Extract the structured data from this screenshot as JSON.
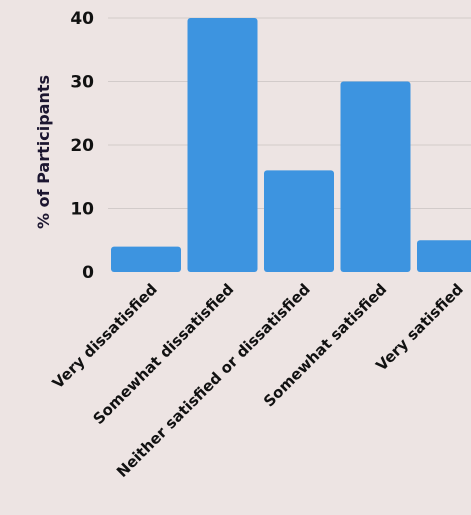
{
  "chart_data": {
    "type": "bar",
    "categories": [
      "Very dissatisfied",
      "Somewhat dissatisfied",
      "Neither satisfied or dissatisfied",
      "Somewhat satisfied",
      "Very satisfied"
    ],
    "values": [
      4,
      40,
      16,
      30,
      5
    ],
    "title": "",
    "xlabel": "",
    "ylabel": "% of Participants",
    "ylim": [
      0,
      40
    ],
    "yticks": [
      0,
      10,
      20,
      30,
      40
    ],
    "grid": true,
    "legend": "none",
    "bar_color": "#3d94e0"
  }
}
